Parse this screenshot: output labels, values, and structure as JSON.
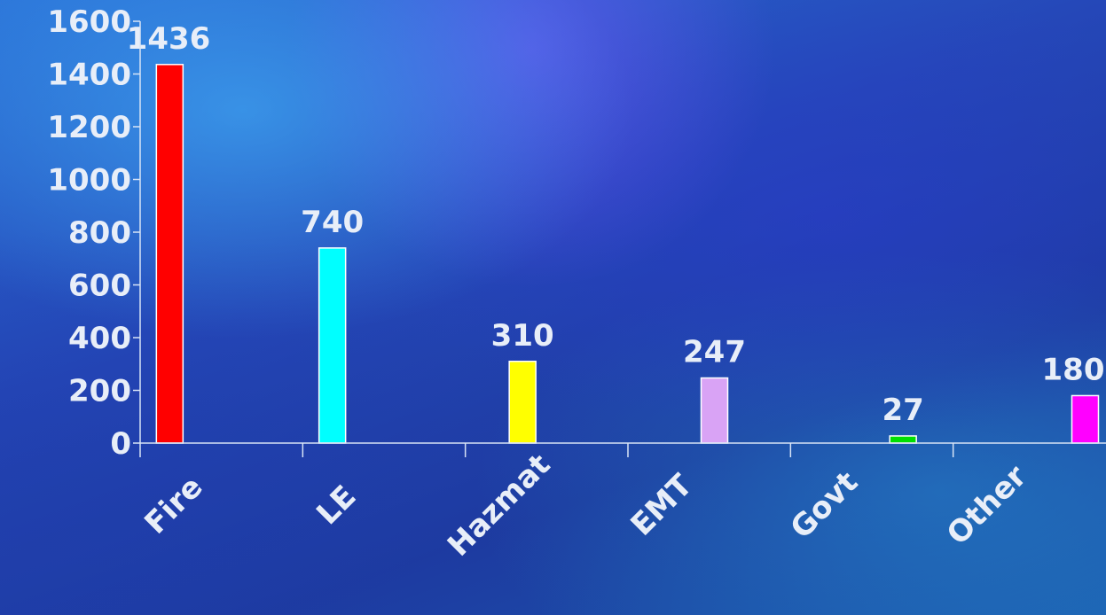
{
  "chart_data": {
    "type": "bar",
    "categories": [
      "Fire",
      "LE",
      "Hazmat",
      "EMT",
      "Govt",
      "Other"
    ],
    "values": [
      1436,
      740,
      310,
      247,
      27,
      180
    ],
    "data_labels": [
      "1436",
      "740",
      "310",
      "247",
      "27",
      "180"
    ],
    "colors": [
      "#ff0000",
      "#00ffff",
      "#ffff00",
      "#d9a3f5",
      "#00e000",
      "#ff00ff"
    ],
    "yticks": [
      "0",
      "200",
      "400",
      "600",
      "800",
      "1000",
      "1200",
      "1400",
      "1600"
    ],
    "ylim": [
      0,
      1600
    ],
    "grid": false,
    "axis_color": "#d8e4f6"
  }
}
